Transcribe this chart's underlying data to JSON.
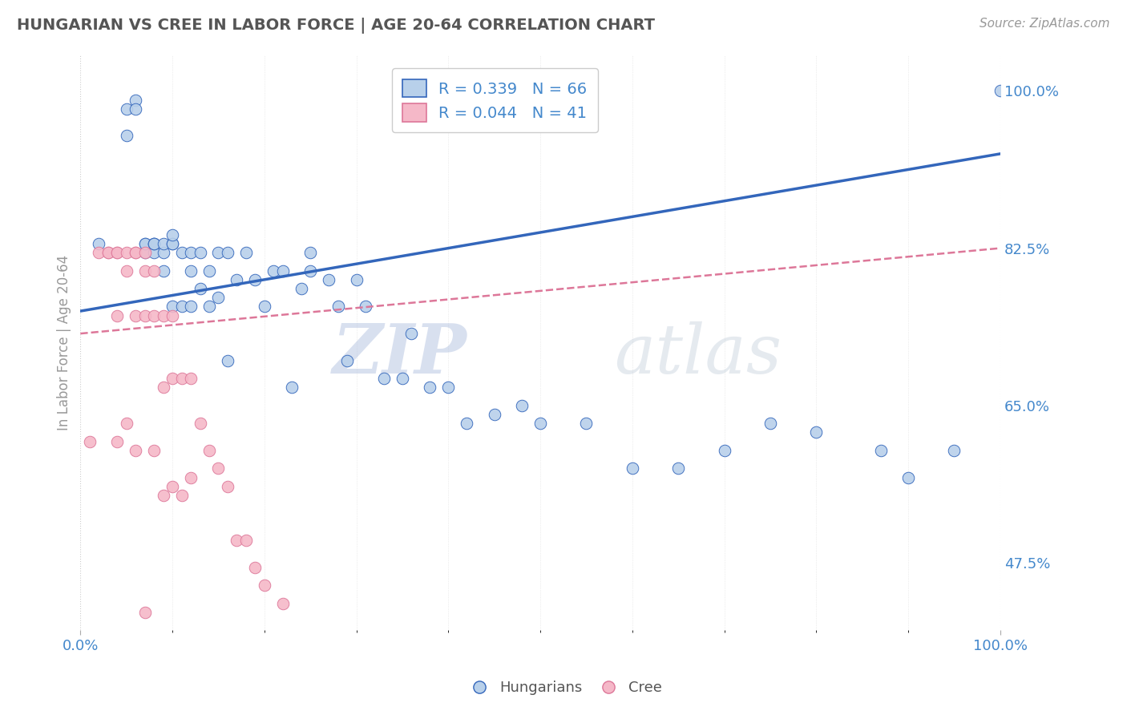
{
  "title": "HUNGARIAN VS CREE IN LABOR FORCE | AGE 20-64 CORRELATION CHART",
  "source_text": "Source: ZipAtlas.com",
  "ylabel": "In Labor Force | Age 20-64",
  "xlim": [
    0.0,
    1.0
  ],
  "ylim": [
    0.4,
    1.04
  ],
  "right_yticks": [
    0.475,
    0.65,
    0.825,
    1.0
  ],
  "right_yticklabels": [
    "47.5%",
    "65.0%",
    "82.5%",
    "100.0%"
  ],
  "watermark_zip": "ZIP",
  "watermark_atlas": "atlas",
  "legend_r1": "R = 0.339",
  "legend_n1": "N = 66",
  "legend_r2": "R = 0.044",
  "legend_n2": "N = 41",
  "blue_color": "#b8d0ea",
  "pink_color": "#f5b8c8",
  "blue_line_color": "#3366bb",
  "pink_line_color": "#dd7799",
  "label_color": "#4488cc",
  "background_color": "#ffffff",
  "blue_scatter_x": [
    0.02,
    0.05,
    0.05,
    0.06,
    0.06,
    0.07,
    0.07,
    0.07,
    0.08,
    0.08,
    0.08,
    0.08,
    0.09,
    0.09,
    0.09,
    0.1,
    0.1,
    0.1,
    0.1,
    0.11,
    0.11,
    0.12,
    0.12,
    0.12,
    0.13,
    0.13,
    0.14,
    0.14,
    0.15,
    0.15,
    0.16,
    0.16,
    0.17,
    0.18,
    0.19,
    0.2,
    0.21,
    0.22,
    0.23,
    0.24,
    0.25,
    0.25,
    0.27,
    0.28,
    0.29,
    0.3,
    0.31,
    0.33,
    0.35,
    0.36,
    0.38,
    0.4,
    0.42,
    0.45,
    0.48,
    0.5,
    0.55,
    0.6,
    0.65,
    0.7,
    0.75,
    0.8,
    0.87,
    0.9,
    0.95,
    1.0
  ],
  "blue_scatter_y": [
    0.83,
    0.95,
    0.98,
    0.99,
    0.98,
    0.82,
    0.83,
    0.83,
    0.83,
    0.82,
    0.83,
    0.83,
    0.8,
    0.82,
    0.83,
    0.76,
    0.83,
    0.83,
    0.84,
    0.76,
    0.82,
    0.76,
    0.8,
    0.82,
    0.78,
    0.82,
    0.76,
    0.8,
    0.77,
    0.82,
    0.7,
    0.82,
    0.79,
    0.82,
    0.79,
    0.76,
    0.8,
    0.8,
    0.67,
    0.78,
    0.8,
    0.82,
    0.79,
    0.76,
    0.7,
    0.79,
    0.76,
    0.68,
    0.68,
    0.73,
    0.67,
    0.67,
    0.63,
    0.64,
    0.65,
    0.63,
    0.63,
    0.58,
    0.58,
    0.6,
    0.63,
    0.62,
    0.6,
    0.57,
    0.6,
    1.0
  ],
  "pink_scatter_x": [
    0.01,
    0.02,
    0.03,
    0.03,
    0.04,
    0.04,
    0.04,
    0.04,
    0.05,
    0.05,
    0.05,
    0.06,
    0.06,
    0.06,
    0.06,
    0.07,
    0.07,
    0.07,
    0.07,
    0.08,
    0.08,
    0.08,
    0.09,
    0.09,
    0.09,
    0.1,
    0.1,
    0.1,
    0.11,
    0.11,
    0.12,
    0.12,
    0.13,
    0.14,
    0.15,
    0.16,
    0.17,
    0.18,
    0.19,
    0.2,
    0.22
  ],
  "pink_scatter_y": [
    0.61,
    0.82,
    0.82,
    0.82,
    0.82,
    0.82,
    0.75,
    0.61,
    0.82,
    0.8,
    0.63,
    0.82,
    0.82,
    0.75,
    0.6,
    0.82,
    0.8,
    0.75,
    0.42,
    0.8,
    0.75,
    0.6,
    0.75,
    0.67,
    0.55,
    0.75,
    0.68,
    0.56,
    0.68,
    0.55,
    0.68,
    0.57,
    0.63,
    0.6,
    0.58,
    0.56,
    0.5,
    0.5,
    0.47,
    0.45,
    0.43
  ],
  "blue_line_x0": 0.0,
  "blue_line_x1": 1.0,
  "blue_line_y0": 0.755,
  "blue_line_y1": 0.93,
  "pink_line_x0": 0.0,
  "pink_line_x1": 1.0,
  "pink_line_y0": 0.73,
  "pink_line_y1": 0.825
}
